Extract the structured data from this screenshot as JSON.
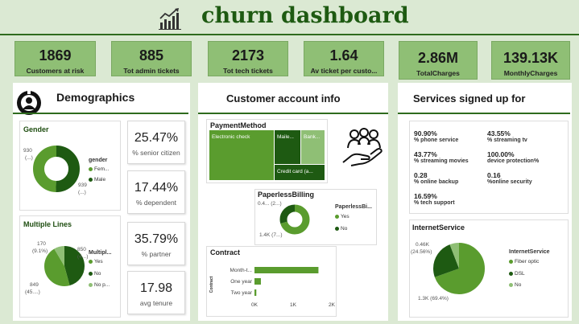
{
  "header": {
    "title": "churn dashboard"
  },
  "kpis": [
    {
      "value": "1869",
      "label": "Customers at risk"
    },
    {
      "value": "885",
      "label": "Tot admin tickets"
    },
    {
      "value": "2173",
      "label": "Tot tech tickets"
    },
    {
      "value": "1.64",
      "label": "Av ticket per custo..."
    },
    {
      "value": "2.86M",
      "label": "TotalCharges"
    },
    {
      "value": "139.13K",
      "label": "MonthlyCharges"
    }
  ],
  "demographics": {
    "title": "Demographics",
    "gender": {
      "title": "Gender",
      "legend_title": "gender",
      "label_a": "930",
      "label_a2": "(...)",
      "label_b": "939",
      "label_b2": "(...)",
      "legend": [
        {
          "label": "Fem...",
          "color": "#5a9c2e"
        },
        {
          "label": "Male",
          "color": "#1e5a12"
        }
      ]
    },
    "multiple_lines": {
      "title": "Multiple Lines",
      "legend_title": "Multipl...",
      "label_a": "170",
      "label_a2": "(9.1%)",
      "label_b": "850",
      "label_b2": "(4...)",
      "label_c": "849",
      "label_c2": "(45....)",
      "legend": [
        {
          "label": "Yes",
          "color": "#5a9c2e"
        },
        {
          "label": "No",
          "color": "#1e5a12"
        },
        {
          "label": "No p...",
          "color": "#8fbf75"
        }
      ]
    },
    "stats": [
      {
        "value": "25.47%",
        "label": "% senior citizen"
      },
      {
        "value": "17.44%",
        "label": "% dependent"
      },
      {
        "value": "35.79%",
        "label": "% partner"
      },
      {
        "value": "17.98",
        "label": "avg tenure"
      }
    ]
  },
  "account": {
    "title": "Customer account info",
    "payment": {
      "title": "PaymentMethod",
      "cells": [
        "Electronic check",
        "Maile...",
        "Bank...",
        "Credit card (a..."
      ]
    },
    "paperless": {
      "title": "PaperlessBilling",
      "legend_title": "PaperlessBi...",
      "label_a": "0.4... (2...)",
      "label_b": "1.4K (7...)",
      "legend": [
        {
          "label": "Yes",
          "color": "#5a9c2e"
        },
        {
          "label": "No",
          "color": "#1e5a12"
        }
      ]
    },
    "contract": {
      "title": "Contract",
      "axis_title": "Contract"
    }
  },
  "services": {
    "title": "Services signed up for",
    "items": [
      {
        "value": "90.90%",
        "label": "% phone service"
      },
      {
        "value": "43.55%",
        "label": "% streaming tv"
      },
      {
        "value": "43.77%",
        "label": "% streaming movies"
      },
      {
        "value": "100.00%",
        "label": "device protection%"
      },
      {
        "value": "0.28",
        "label": "% online backup"
      },
      {
        "value": "0.16",
        "label": "%online security"
      },
      {
        "value": "16.59%",
        "label": "% tech support"
      }
    ],
    "internet": {
      "title": "InternetService",
      "legend_title": "InternetService",
      "label_a": "0.46K",
      "label_a2": "(24.56%)",
      "label_b": "1.3K (69.4%)",
      "legend": [
        {
          "label": "Fiber optic",
          "color": "#5a9c2e"
        },
        {
          "label": "DSL",
          "color": "#1e5a12"
        },
        {
          "label": "No",
          "color": "#8fbf75"
        }
      ]
    }
  },
  "chart_data": [
    {
      "type": "bar",
      "orientation": "horizontal",
      "title": "Contract",
      "ylabel": "Contract",
      "categories": [
        "Month-t...",
        "One year",
        "Two year"
      ],
      "values": [
        1655,
        166,
        48
      ],
      "xlim": [
        0,
        2000
      ],
      "xticks": [
        "0K",
        "1K",
        "2K"
      ],
      "color": "#5a9c2e"
    }
  ]
}
